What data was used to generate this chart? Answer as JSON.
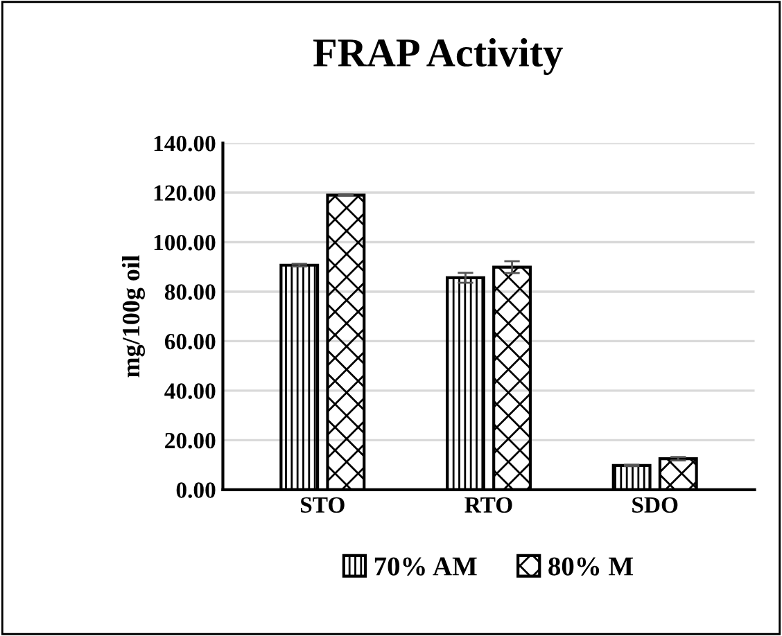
{
  "chart_data": {
    "type": "bar",
    "title": "FRAP Activity",
    "ylabel": "mg/100g oil",
    "categories": [
      "STO",
      "RTO",
      "SDO"
    ],
    "series": [
      {
        "name": "70% AM",
        "color": "#000000",
        "values": [
          90.7,
          85.6,
          9.8
        ],
        "errors": [
          0.5,
          2.0,
          0.3
        ]
      },
      {
        "name": "80% M",
        "color": "#000000",
        "values": [
          119.0,
          89.9,
          12.5
        ],
        "errors": [
          0.3,
          2.4,
          0.7
        ]
      }
    ],
    "ylim": [
      0,
      140
    ],
    "yticks": [
      {
        "value": 0,
        "label": "0.00"
      },
      {
        "value": 20,
        "label": "20.00"
      },
      {
        "value": 40,
        "label": "40.00"
      },
      {
        "value": 60,
        "label": "60.00"
      },
      {
        "value": 80,
        "label": "80.00"
      },
      {
        "value": 100,
        "label": "100.00"
      },
      {
        "value": 120,
        "label": "120.00"
      },
      {
        "value": 140,
        "label": "140.00"
      }
    ],
    "grid": "y",
    "legend": "bottom"
  }
}
